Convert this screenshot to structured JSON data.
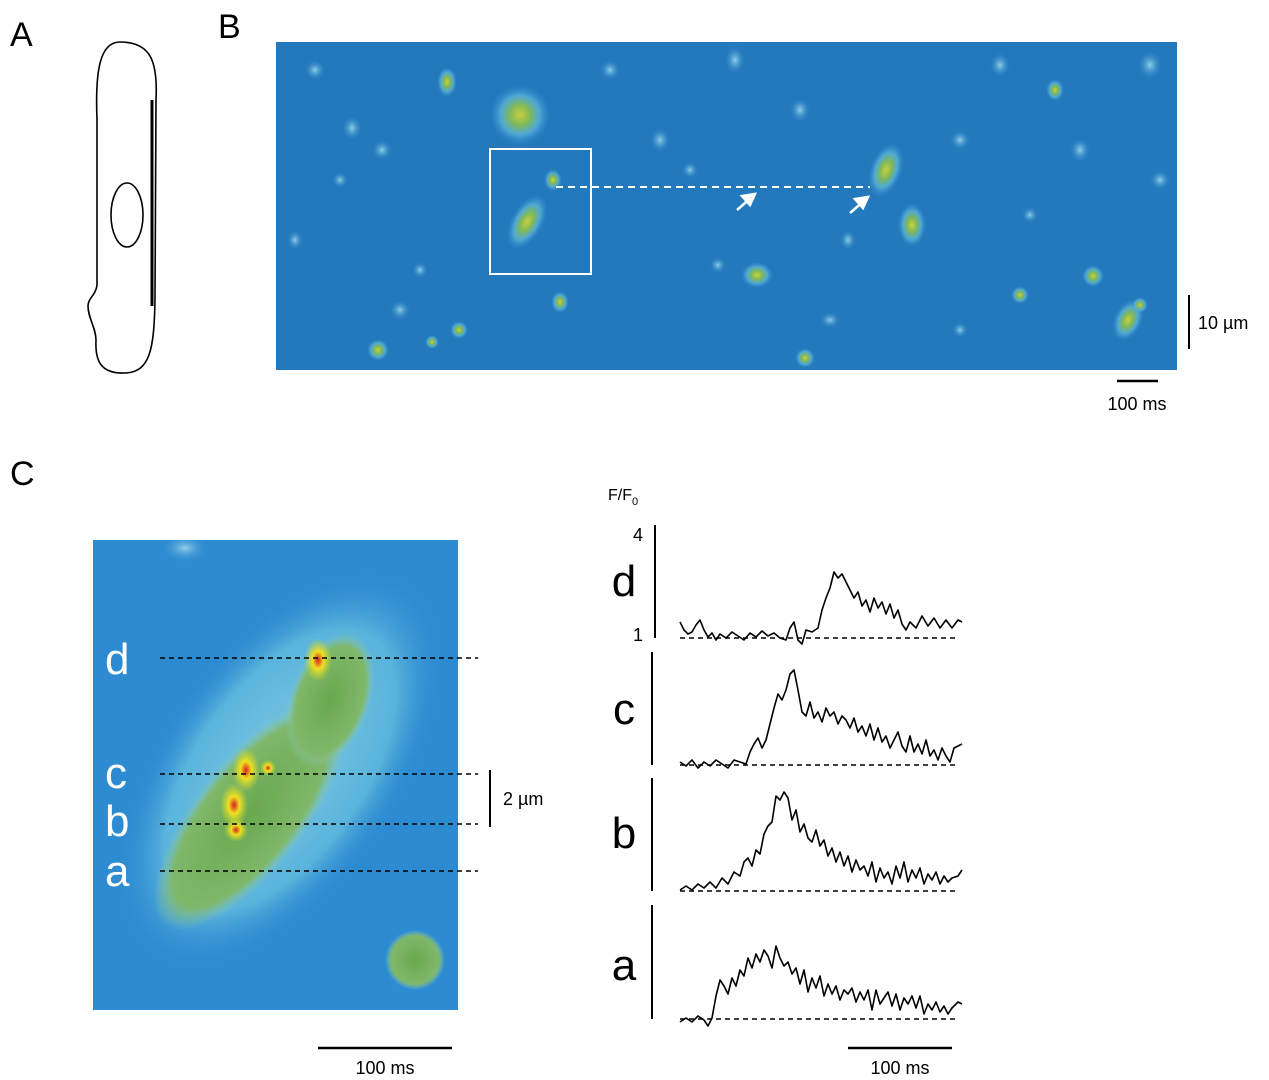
{
  "panels": {
    "a": {
      "label": "A"
    },
    "b": {
      "label": "B",
      "scale_space": "10 µm",
      "scale_time": "100 ms"
    },
    "c": {
      "label": "C",
      "line_labels": [
        "d",
        "c",
        "b",
        "a"
      ],
      "scale_space": "2 µm",
      "scale_time": "100 ms",
      "trace_axis": {
        "title": {
          "main": "F/F",
          "sub": "0"
        },
        "ticks": [
          4,
          1
        ]
      },
      "trace_labels": [
        "d",
        "c",
        "b",
        "a"
      ],
      "trace_scale_time": "100 ms"
    }
  }
}
